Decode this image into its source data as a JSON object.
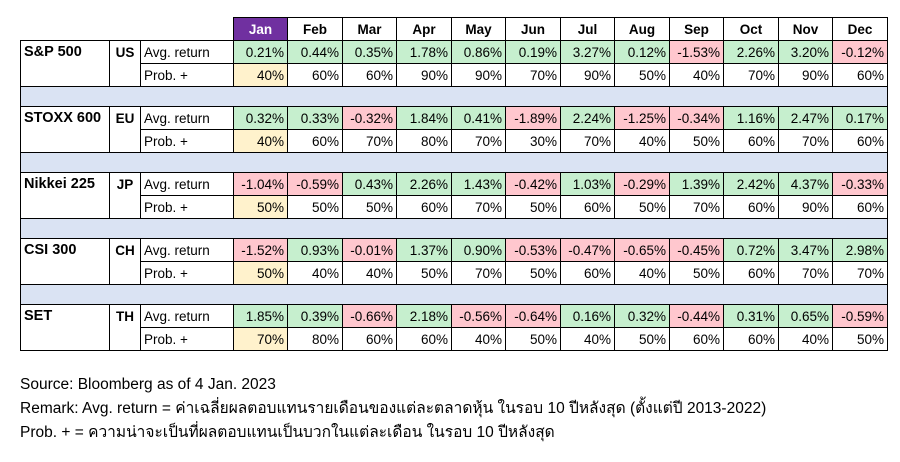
{
  "months": [
    "Jan",
    "Feb",
    "Mar",
    "Apr",
    "May",
    "Jun",
    "Jul",
    "Aug",
    "Sep",
    "Oct",
    "Nov",
    "Dec"
  ],
  "selected_month": "Jan",
  "colors": {
    "selected_header": "#7030a0",
    "positive": "#c6efce",
    "negative": "#ffc7ce",
    "highlight": "#fff2cc",
    "separator": "#dae3f3"
  },
  "metric_labels": {
    "avg": "Avg. return",
    "prob": "Prob. +"
  },
  "rows": [
    {
      "index": "S&P 500",
      "country": "US",
      "avg": [
        "0.21%",
        "0.44%",
        "0.35%",
        "1.78%",
        "0.86%",
        "0.19%",
        "3.27%",
        "0.12%",
        "-1.53%",
        "2.26%",
        "3.20%",
        "-0.12%"
      ],
      "prob": [
        "40%",
        "60%",
        "60%",
        "90%",
        "90%",
        "70%",
        "90%",
        "50%",
        "40%",
        "70%",
        "90%",
        "60%"
      ]
    },
    {
      "index": "STOXX 600",
      "country": "EU",
      "avg": [
        "0.32%",
        "0.33%",
        "-0.32%",
        "1.84%",
        "0.41%",
        "-1.89%",
        "2.24%",
        "-1.25%",
        "-0.34%",
        "1.16%",
        "2.47%",
        "0.17%"
      ],
      "prob": [
        "40%",
        "60%",
        "70%",
        "80%",
        "70%",
        "30%",
        "70%",
        "40%",
        "50%",
        "60%",
        "70%",
        "60%"
      ]
    },
    {
      "index": "Nikkei 225",
      "country": "JP",
      "avg": [
        "-1.04%",
        "-0.59%",
        "0.43%",
        "2.26%",
        "1.43%",
        "-0.42%",
        "1.03%",
        "-0.29%",
        "1.39%",
        "2.42%",
        "4.37%",
        "-0.33%"
      ],
      "prob": [
        "50%",
        "50%",
        "50%",
        "60%",
        "70%",
        "50%",
        "60%",
        "50%",
        "70%",
        "60%",
        "90%",
        "60%"
      ]
    },
    {
      "index": "CSI 300",
      "country": "CH",
      "avg": [
        "-1.52%",
        "0.93%",
        "-0.01%",
        "1.37%",
        "0.90%",
        "-0.53%",
        "-0.47%",
        "-0.65%",
        "-0.45%",
        "0.72%",
        "3.47%",
        "2.98%"
      ],
      "prob": [
        "50%",
        "40%",
        "40%",
        "50%",
        "70%",
        "50%",
        "60%",
        "40%",
        "50%",
        "60%",
        "70%",
        "70%"
      ]
    },
    {
      "index": "SET",
      "country": "TH",
      "avg": [
        "1.85%",
        "0.39%",
        "-0.66%",
        "2.18%",
        "-0.56%",
        "-0.64%",
        "0.16%",
        "0.32%",
        "-0.44%",
        "0.31%",
        "0.65%",
        "-0.59%"
      ],
      "prob": [
        "70%",
        "80%",
        "60%",
        "60%",
        "40%",
        "50%",
        "40%",
        "50%",
        "60%",
        "60%",
        "40%",
        "50%"
      ]
    }
  ],
  "notes": {
    "source": "Source: Bloomberg as of 4 Jan. 2023",
    "remark": "Remark: Avg. return = ค่าเฉลี่ยผลตอบแทนรายเดือนของแต่ละตลาดหุ้น ในรอบ 10 ปีหลังสุด (ตั้งแต่ปี 2013-2022)",
    "prob_def": "Prob. + = ความน่าจะเป็นที่ผลตอบแทนเป็นบวกในแต่ละเดือน ในรอบ 10 ปีหลังสุด"
  }
}
